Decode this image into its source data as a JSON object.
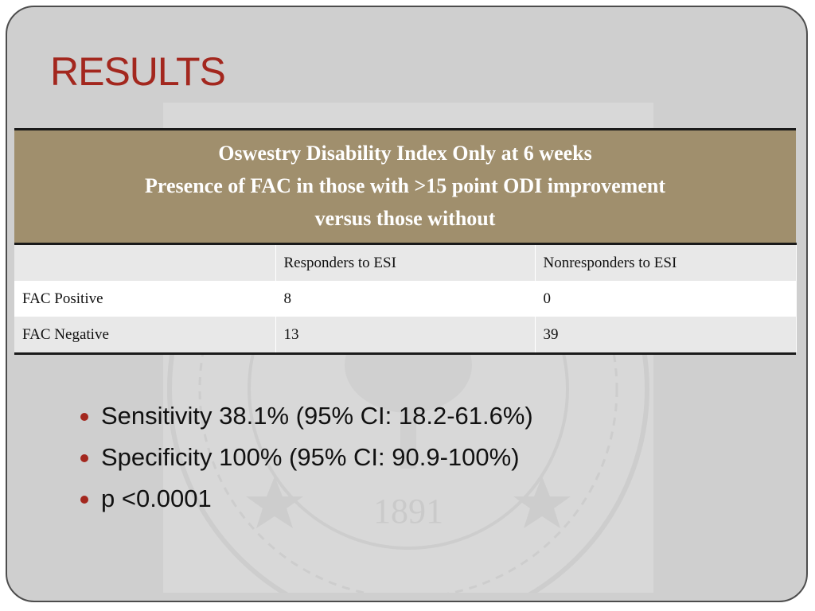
{
  "slide": {
    "title": "RESULTS",
    "watermark_year": "1891",
    "accent_color": "#a3271e",
    "header_color": "#a08f6d"
  },
  "table": {
    "header_lines": [
      "Oswestry Disability Index Only at 6 weeks",
      "Presence of FAC in those with >15 point ODI improvement",
      "versus those without"
    ],
    "columns": [
      "",
      "Responders to ESI",
      "Nonresponders to ESI"
    ],
    "rows": [
      [
        "FAC Positive",
        "8",
        "0"
      ],
      [
        "FAC Negative",
        "13",
        "39"
      ]
    ]
  },
  "bullets": [
    "Sensitivity 38.1% (95% CI: 18.2-61.6%)",
    "Specificity 100% (95% CI: 90.9-100%)",
    "p <0.0001"
  ]
}
